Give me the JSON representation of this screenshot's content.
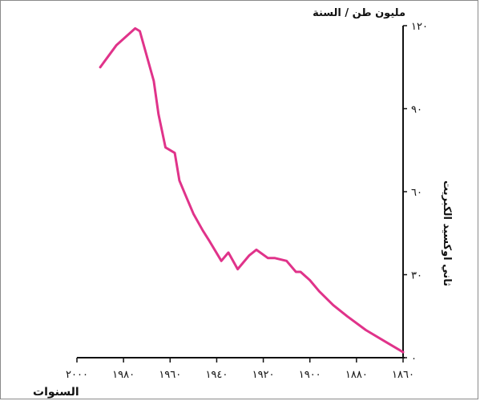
{
  "chart_data": {
    "type": "line",
    "title": "",
    "xlabel": "السنوات",
    "ylabel": "ثاني اوكسيد الكبريت",
    "yunit": "مليون طن / السنة",
    "xlim": [
      1860,
      2000
    ],
    "ylim": [
      0,
      120
    ],
    "x_ticks": [
      1860,
      1880,
      1900,
      1920,
      1940,
      1960,
      1980,
      2000
    ],
    "x_tick_labels": [
      "١٨٦٠",
      "١٨٨٠",
      "١٩٠٠",
      "١٩٢٠",
      "١٩٤٠",
      "١٩٦٠",
      "١٩٨٠",
      "٢٠٠٠"
    ],
    "y_ticks": [
      0,
      30,
      60,
      90,
      120
    ],
    "y_tick_labels": [
      "٠",
      "٣٠",
      "٦٠",
      "٩٠",
      "١٢٠"
    ],
    "grid": false,
    "x_reversed": true,
    "line_color": "#e0338a",
    "series": [
      {
        "x": [
          1860,
          1868,
          1876,
          1884,
          1890,
          1896,
          1900,
          1904,
          1906,
          1910,
          1915,
          1918,
          1923,
          1926,
          1931,
          1935,
          1938,
          1943,
          1946,
          1950,
          1953,
          1956,
          1958,
          1962,
          1965,
          1967,
          1973,
          1975,
          1983,
          1990
        ],
        "y": [
          2,
          6,
          10,
          15,
          19,
          24,
          28,
          31,
          31,
          35,
          36,
          36,
          39,
          37,
          32,
          38,
          35,
          42,
          46,
          52,
          58,
          64,
          74,
          76,
          88,
          100,
          118,
          119,
          113,
          105
        ]
      }
    ]
  }
}
